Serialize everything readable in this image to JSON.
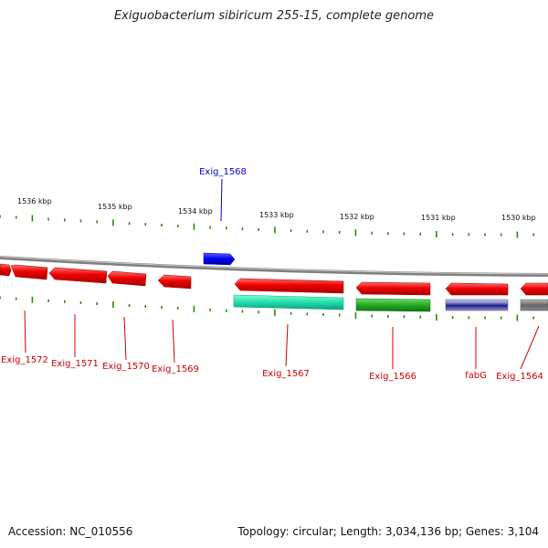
{
  "title": "Exiguobacterium sibiricum 255-15, complete genome",
  "footer": {
    "accession": "Accession: NC_010556",
    "summary": "Topology: circular; Length: 3,034,136 bp; Genes: 3,104"
  },
  "colors": {
    "forward_gene": "#ee0000",
    "highlight_gene": "#0000ee",
    "rna_teal": "#22ddaa",
    "rna_green": "#22aa22",
    "rna_purple": "#6666aa",
    "backbone": "#888888",
    "tick": "#2a8a00"
  },
  "ticks": [
    {
      "label": "1536 kbp"
    },
    {
      "label": "1535 kbp"
    },
    {
      "label": "1534 kbp"
    },
    {
      "label": "1533 kbp"
    },
    {
      "label": "1532 kbp"
    },
    {
      "label": "1531 kbp"
    },
    {
      "label": "1530 kbp"
    }
  ],
  "genes": [
    {
      "name": "Exig_1568",
      "color": "blue"
    },
    {
      "name": "Exig_1572",
      "color": "red"
    },
    {
      "name": "Exig_1571",
      "color": "red"
    },
    {
      "name": "Exig_1570",
      "color": "red"
    },
    {
      "name": "Exig_1569",
      "color": "red"
    },
    {
      "name": "Exig_1567",
      "color": "red"
    },
    {
      "name": "Exig_1566",
      "color": "red"
    },
    {
      "name": "fabG",
      "color": "red"
    },
    {
      "name": "Exig_1564",
      "color": "red"
    }
  ]
}
